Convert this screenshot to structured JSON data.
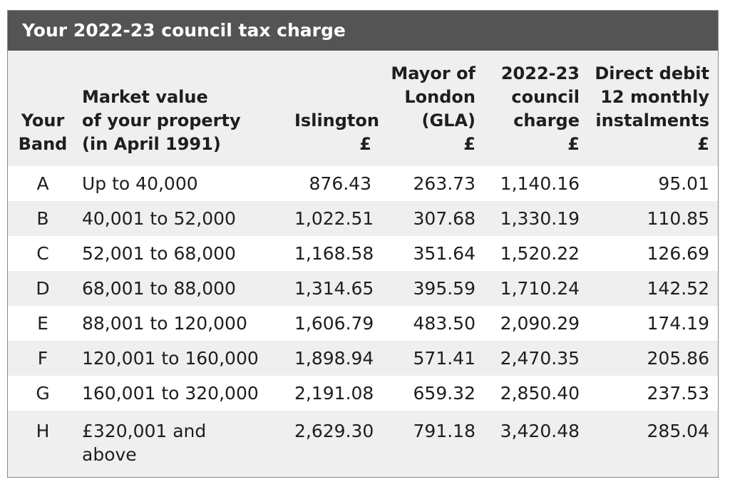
{
  "title": "Your 2022-23 council tax charge",
  "columns": {
    "band": "Your\nBand",
    "value": "Market value\nof your property\n(in April 1991)",
    "islington": "Islington\n£",
    "gla": "Mayor of\nLondon\n(GLA)\n£",
    "total": "2022-23\ncouncil\ncharge\n£",
    "direct_debit": "Direct debit\n12 monthly\ninstalments\n£"
  },
  "rows": [
    {
      "band": "A",
      "value": "Up to 40,000",
      "islington": "876.43",
      "gla": "263.73",
      "total": "1,140.16",
      "direct_debit": "95.01"
    },
    {
      "band": "B",
      "value": "40,001 to 52,000",
      "islington": "1,022.51",
      "gla": "307.68",
      "total": "1,330.19",
      "direct_debit": "110.85"
    },
    {
      "band": "C",
      "value": "52,001 to 68,000",
      "islington": "1,168.58",
      "gla": "351.64",
      "total": "1,520.22",
      "direct_debit": "126.69"
    },
    {
      "band": "D",
      "value": "68,001 to 88,000",
      "islington": "1,314.65",
      "gla": "395.59",
      "total": "1,710.24",
      "direct_debit": "142.52"
    },
    {
      "band": "E",
      "value": "88,001 to 120,000",
      "islington": "1,606.79",
      "gla": "483.50",
      "total": "2,090.29",
      "direct_debit": "174.19"
    },
    {
      "band": "F",
      "value": "120,001 to 160,000",
      "islington": "1,898.94",
      "gla": "571.41",
      "total": "2,470.35",
      "direct_debit": "205.86"
    },
    {
      "band": "G",
      "value": "160,001 to 320,000",
      "islington": "2,191.08",
      "gla": "659.32",
      "total": "2,850.40",
      "direct_debit": "237.53"
    },
    {
      "band": "H",
      "value": "£320,001 and\nabove",
      "islington": "2,629.30",
      "gla": "791.18",
      "total": "3,420.48",
      "direct_debit": "285.04"
    }
  ],
  "colors": {
    "title_bg": "#545454",
    "title_text": "#ffffff",
    "stripe": "#efefef",
    "text": "#1e1e1e"
  }
}
